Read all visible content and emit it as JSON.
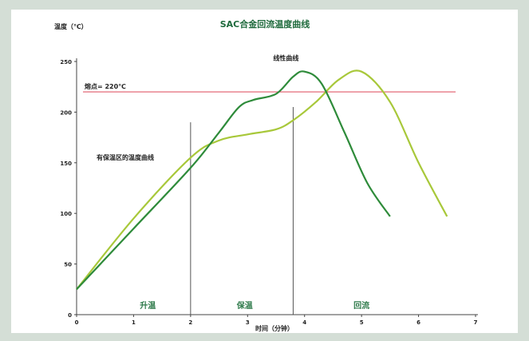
{
  "chart_data": {
    "type": "line",
    "title": "SAC合金回流温度曲线",
    "ylabel": "温度（℃）",
    "xlabel": "时间（分钟）",
    "xlim": [
      0,
      7
    ],
    "ylim": [
      0,
      250
    ],
    "x_ticks": [
      "0",
      "1",
      "2",
      "3",
      "4",
      "5",
      "6",
      "7"
    ],
    "y_ticks": [
      "0",
      "50",
      "100",
      "150",
      "200",
      "250"
    ],
    "melting_point": {
      "label": "熔点= 220℃",
      "value": 220,
      "color": "#e05a6a"
    },
    "phase_dividers": [
      2.0,
      3.8
    ],
    "phase_labels": [
      {
        "text": "升温",
        "x": 1.25
      },
      {
        "text": "保温",
        "x": 2.95
      },
      {
        "text": "回流",
        "x": 5.0
      }
    ],
    "series": [
      {
        "name": "线性曲线",
        "color": "#2e8b3a",
        "x": [
          0,
          1,
          2,
          2.5,
          2.85,
          3.1,
          3.5,
          3.8,
          4.0,
          4.3,
          4.7,
          5.1,
          5.5
        ],
        "y": [
          25,
          85,
          145,
          180,
          205,
          212,
          218,
          235,
          240,
          228,
          180,
          130,
          97
        ]
      },
      {
        "name": "有保温区的温度曲线",
        "color": "#a8c83a",
        "x": [
          0,
          1,
          2,
          2.5,
          3,
          3.5,
          3.8,
          4.2,
          4.6,
          5.0,
          5.5,
          6.0,
          6.5
        ],
        "y": [
          25,
          95,
          155,
          172,
          178,
          183,
          192,
          210,
          232,
          240,
          210,
          150,
          97
        ]
      }
    ],
    "annotations": [
      {
        "text": "线性曲线",
        "x": 3.45,
        "y": 251
      },
      {
        "text": "有保温区的温度曲线",
        "x": 0.35,
        "y": 153
      }
    ]
  }
}
